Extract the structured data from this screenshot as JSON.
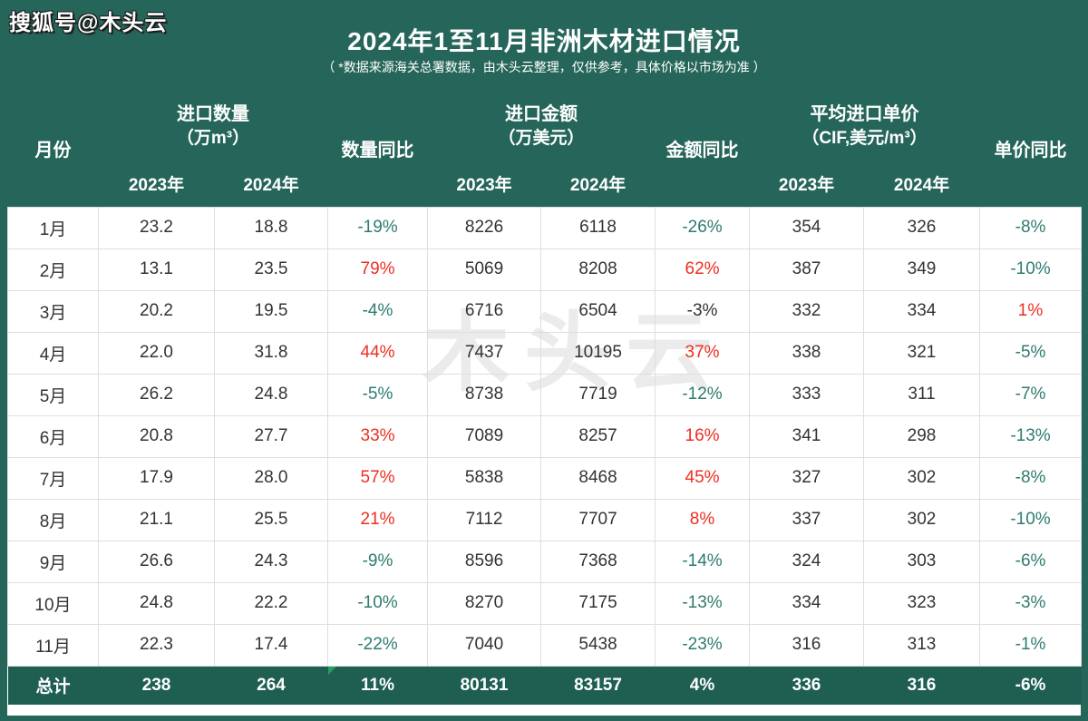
{
  "page": {
    "badge": "搜狐号@木头云",
    "title": "2024年1至11月非洲木材进口情况",
    "subtitle": "（ *数据来源海关总署数据，由木头云整理，仅供参考，具体价格以市场为准 ）",
    "center_watermark": "木头云"
  },
  "colors": {
    "page_bg": "#26665A",
    "total_row_bg": "#1E5F52",
    "increase_red": "#ee2e20",
    "decrease_teal": "#2e7b70",
    "data_dark": "#333333",
    "watermark_gray": "#ebebeb",
    "marker_green": "#27a05d"
  },
  "chart_data": {
    "type": "table",
    "title": "2024年1至11月非洲木材进口情况",
    "header": {
      "month": "月份",
      "qty_line1": "进口数量",
      "qty_line2": "（万m³）",
      "qty_yoy": "数量同比",
      "amt_line1": "进口金额",
      "amt_line2": "（万美元）",
      "amt_yoy": "金额同比",
      "price_line1": "平均进口单价",
      "price_line2": "（CIF,美元/m³）",
      "price_yoy": "单价同比",
      "y2023": "2023年",
      "y2024": "2024年"
    },
    "rows": [
      {
        "month": "1月",
        "q23": "23.2",
        "q24": "18.8",
        "qy": "-19%",
        "qyc": "teal",
        "a23": "8226",
        "a24": "6118",
        "ay": "-26%",
        "ayc": "teal",
        "p23": "354",
        "p24": "326",
        "py": "-8%",
        "pyc": "teal"
      },
      {
        "month": "2月",
        "q23": "13.1",
        "q24": "23.5",
        "qy": "79%",
        "qyc": "red",
        "a23": "5069",
        "a24": "8208",
        "ay": "62%",
        "ayc": "red",
        "p23": "387",
        "p24": "349",
        "py": "-10%",
        "pyc": "teal"
      },
      {
        "month": "3月",
        "q23": "20.2",
        "q24": "19.5",
        "qy": "-4%",
        "qyc": "teal",
        "a23": "6716",
        "a24": "6504",
        "ay": "-3%",
        "ayc": "dark",
        "p23": "332",
        "p24": "334",
        "py": "1%",
        "pyc": "red"
      },
      {
        "month": "4月",
        "q23": "22.0",
        "q24": "31.8",
        "qy": "44%",
        "qyc": "red",
        "a23": "7437",
        "a24": "10195",
        "ay": "37%",
        "ayc": "red",
        "p23": "338",
        "p24": "321",
        "py": "-5%",
        "pyc": "teal"
      },
      {
        "month": "5月",
        "q23": "26.2",
        "q24": "24.8",
        "qy": "-5%",
        "qyc": "teal",
        "a23": "8738",
        "a24": "7719",
        "ay": "-12%",
        "ayc": "teal",
        "p23": "333",
        "p24": "311",
        "py": "-7%",
        "pyc": "teal"
      },
      {
        "month": "6月",
        "q23": "20.8",
        "q24": "27.7",
        "qy": "33%",
        "qyc": "red",
        "a23": "7089",
        "a24": "8257",
        "ay": "16%",
        "ayc": "red",
        "p23": "341",
        "p24": "298",
        "py": "-13%",
        "pyc": "teal"
      },
      {
        "month": "7月",
        "q23": "17.9",
        "q24": "28.0",
        "qy": "57%",
        "qyc": "red",
        "a23": "5838",
        "a24": "8468",
        "ay": "45%",
        "ayc": "red",
        "p23": "327",
        "p24": "302",
        "py": "-8%",
        "pyc": "teal"
      },
      {
        "month": "8月",
        "q23": "21.1",
        "q24": "25.5",
        "qy": "21%",
        "qyc": "red",
        "a23": "7112",
        "a24": "7707",
        "ay": "8%",
        "ayc": "red",
        "p23": "337",
        "p24": "302",
        "py": "-10%",
        "pyc": "teal"
      },
      {
        "month": "9月",
        "q23": "26.6",
        "q24": "24.3",
        "qy": "-9%",
        "qyc": "teal",
        "a23": "8596",
        "a24": "7368",
        "ay": "-14%",
        "ayc": "teal",
        "p23": "324",
        "p24": "303",
        "py": "-6%",
        "pyc": "teal"
      },
      {
        "month": "10月",
        "q23": "24.8",
        "q24": "22.2",
        "qy": "-10%",
        "qyc": "teal",
        "a23": "8270",
        "a24": "7175",
        "ay": "-13%",
        "ayc": "teal",
        "p23": "334",
        "p24": "323",
        "py": "-3%",
        "pyc": "teal"
      },
      {
        "month": "11月",
        "q23": "22.3",
        "q24": "17.4",
        "qy": "-22%",
        "qyc": "teal",
        "a23": "7040",
        "a24": "5438",
        "ay": "-23%",
        "ayc": "teal",
        "p23": "316",
        "p24": "313",
        "py": "-1%",
        "pyc": "teal"
      }
    ],
    "total": {
      "month": "总计",
      "q23": "238",
      "q24": "264",
      "qy": "11%",
      "a23": "80131",
      "a24": "83157",
      "ay": "4%",
      "p23": "336",
      "p24": "316",
      "py": "-6%"
    }
  }
}
